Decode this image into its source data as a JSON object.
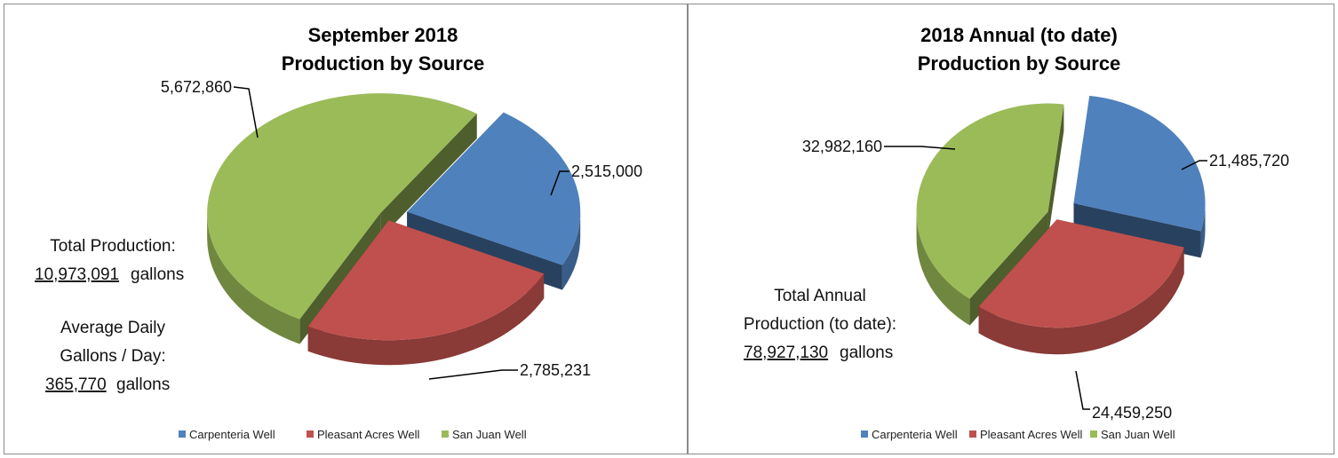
{
  "chart_data": [
    {
      "type": "pie",
      "title_lines": [
        "September 2018",
        "Production by Source"
      ],
      "categories": [
        "Carpenteria Well",
        "Pleasant Acres Well",
        "San Juan Well"
      ],
      "values": [
        2515000,
        2785231,
        5672860
      ],
      "value_labels": [
        "2,515,000",
        "2,785,231",
        "5,672,860"
      ],
      "colors": [
        "#4f81bd",
        "#c0504d",
        "#9bbb59"
      ],
      "legend_position": "bottom",
      "notes": {
        "total_line1": "Total Production:",
        "total_value": "10,973,091",
        "total_unit": "gallons",
        "avg_line1": "Average Daily",
        "avg_line2": "Gallons / Day:",
        "avg_value": "365,770",
        "avg_unit": "gallons"
      }
    },
    {
      "type": "pie",
      "title_lines": [
        "2018 Annual (to date)",
        "Production by Source"
      ],
      "categories": [
        "Carpenteria Well",
        "Pleasant Acres Well",
        "San Juan Well"
      ],
      "values": [
        21485720,
        24459250,
        32982160
      ],
      "value_labels": [
        "21,485,720",
        "24,459,250",
        "32,982,160"
      ],
      "colors": [
        "#4f81bd",
        "#c0504d",
        "#9bbb59"
      ],
      "legend_position": "bottom",
      "notes": {
        "total_line1": "Total Annual",
        "total_line2": "Production (to date):",
        "total_value": "78,927,130",
        "total_unit": "gallons"
      }
    }
  ]
}
